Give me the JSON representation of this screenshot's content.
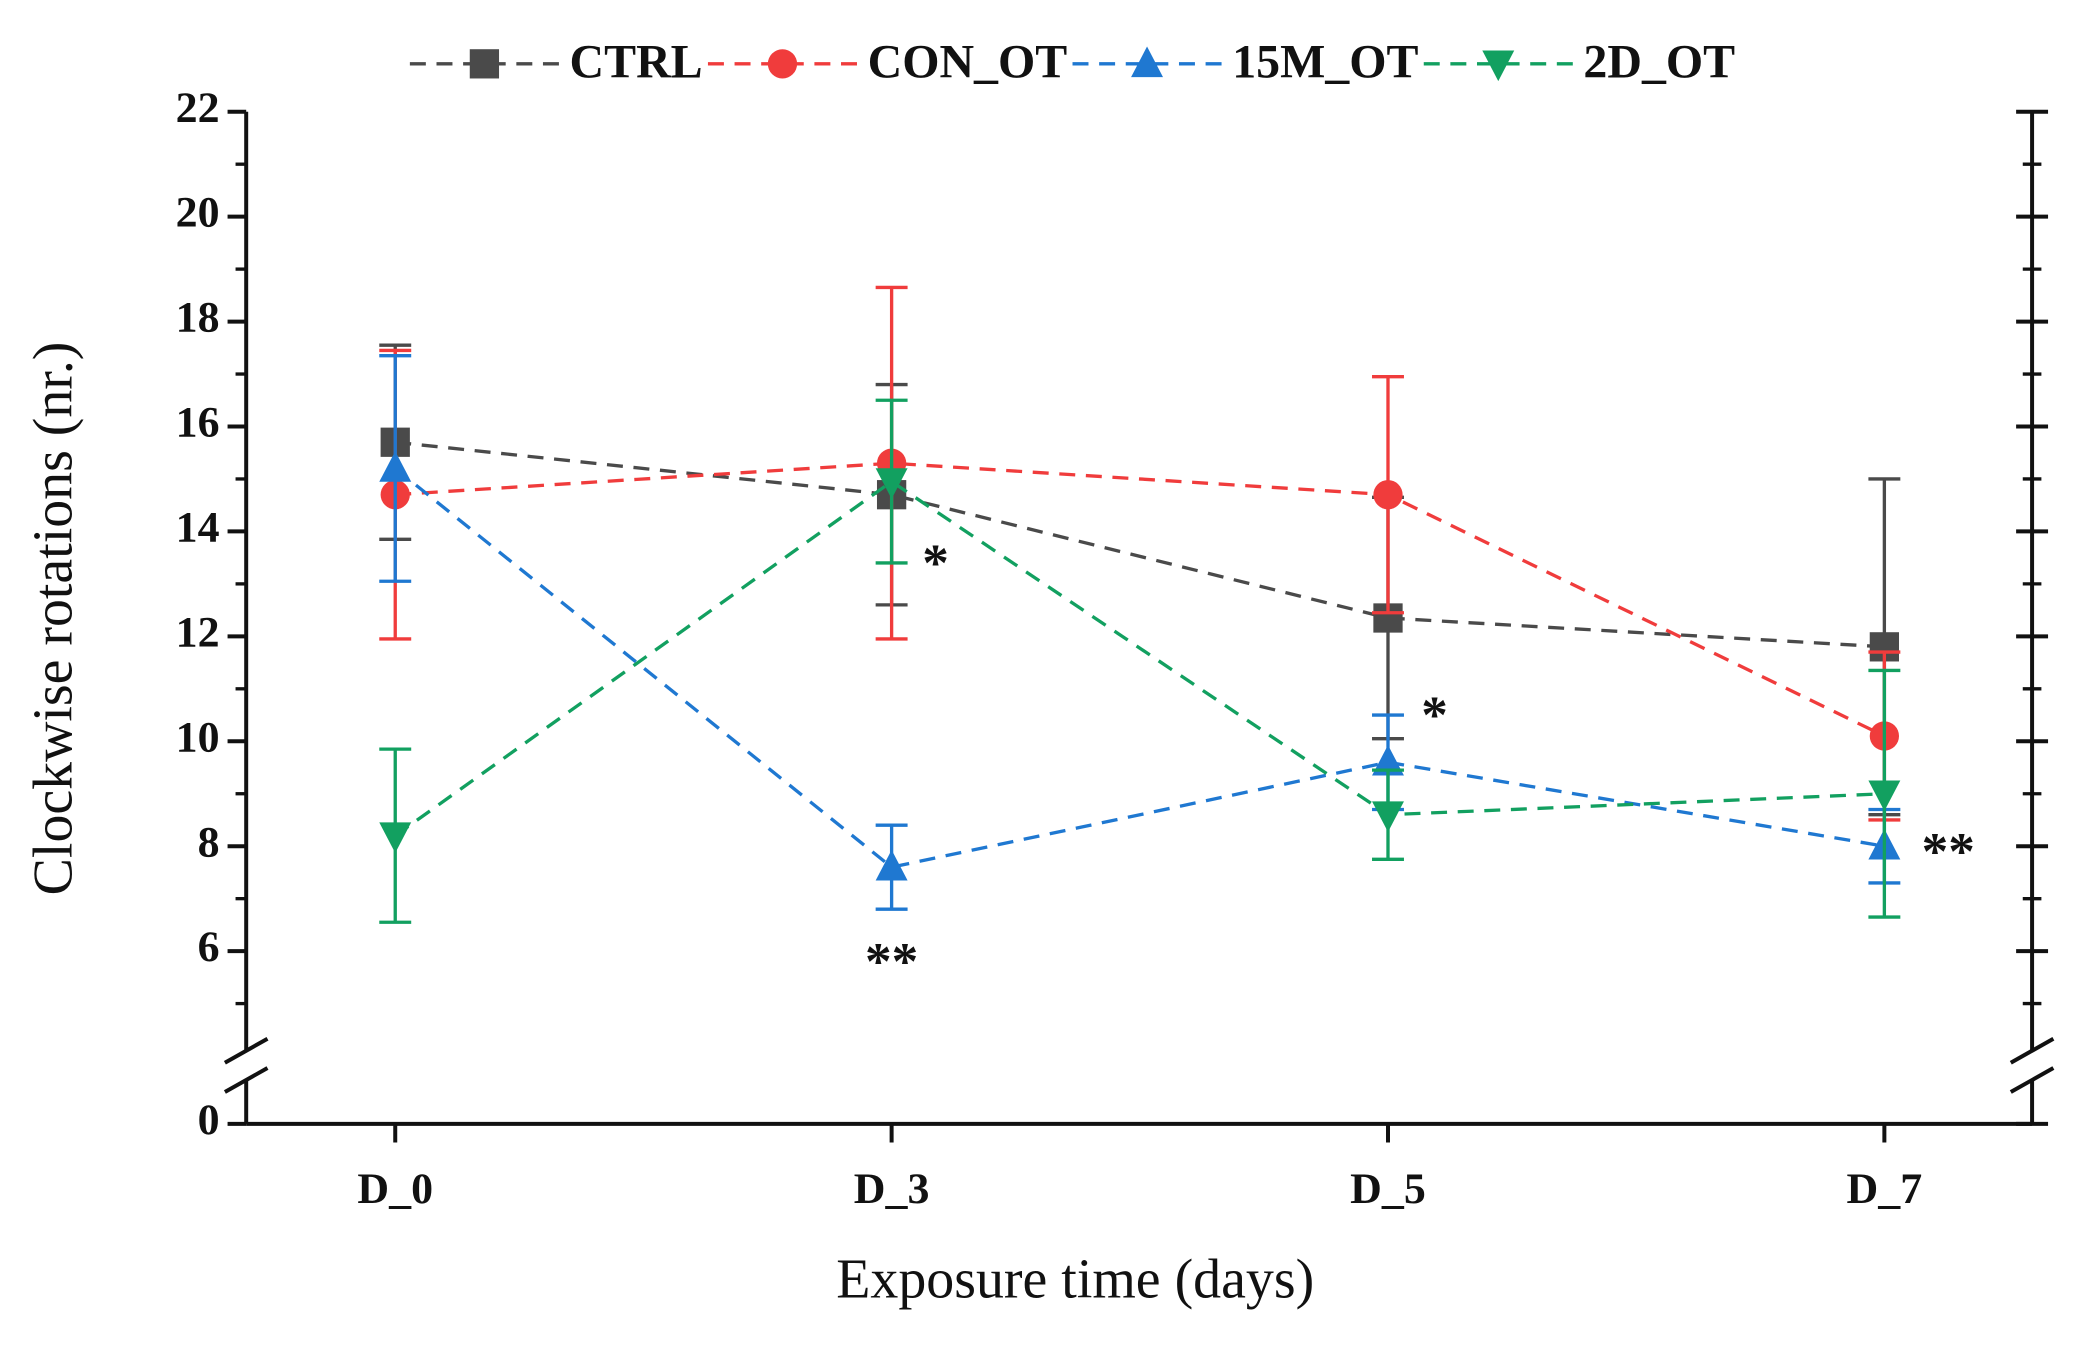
{
  "chart_data": {
    "type": "line",
    "xlabel": "Exposure time (days)",
    "ylabel": "Clockwise rotations (nr.)",
    "categories": [
      "D_0",
      "D_3",
      "D_5",
      "D_7"
    ],
    "ylim": [
      0,
      22
    ],
    "ybreak": [
      0,
      4
    ],
    "yticks": [
      0,
      6,
      8,
      10,
      12,
      14,
      16,
      18,
      20,
      22
    ],
    "legend": "top",
    "series": [
      {
        "name": "CTRL",
        "color": "#4a4a4a",
        "marker": "square",
        "values": [
          15.7,
          14.7,
          12.35,
          11.8
        ],
        "errors": [
          1.85,
          2.1,
          2.3,
          3.2
        ]
      },
      {
        "name": "CON_OT",
        "color": "#f03c3c",
        "marker": "circle",
        "values": [
          14.7,
          15.3,
          14.7,
          10.1
        ],
        "errors": [
          2.75,
          3.35,
          2.25,
          1.6
        ]
      },
      {
        "name": "15M_OT",
        "color": "#1f78d1",
        "marker": "triangle-up",
        "values": [
          15.2,
          7.6,
          9.6,
          8.0
        ],
        "errors": [
          2.15,
          0.8,
          0.9,
          0.7
        ]
      },
      {
        "name": "2D_OT",
        "color": "#12a060",
        "marker": "triangle-down",
        "values": [
          8.2,
          14.95,
          8.6,
          9.0
        ],
        "errors": [
          1.65,
          1.55,
          0.85,
          2.35
        ]
      }
    ],
    "annotations": [
      {
        "text": "*",
        "category": "D_3"
      },
      {
        "text": "**",
        "category": "D_3"
      },
      {
        "text": "*",
        "category": "D_5"
      },
      {
        "text": "**",
        "category": "D_7"
      }
    ]
  }
}
